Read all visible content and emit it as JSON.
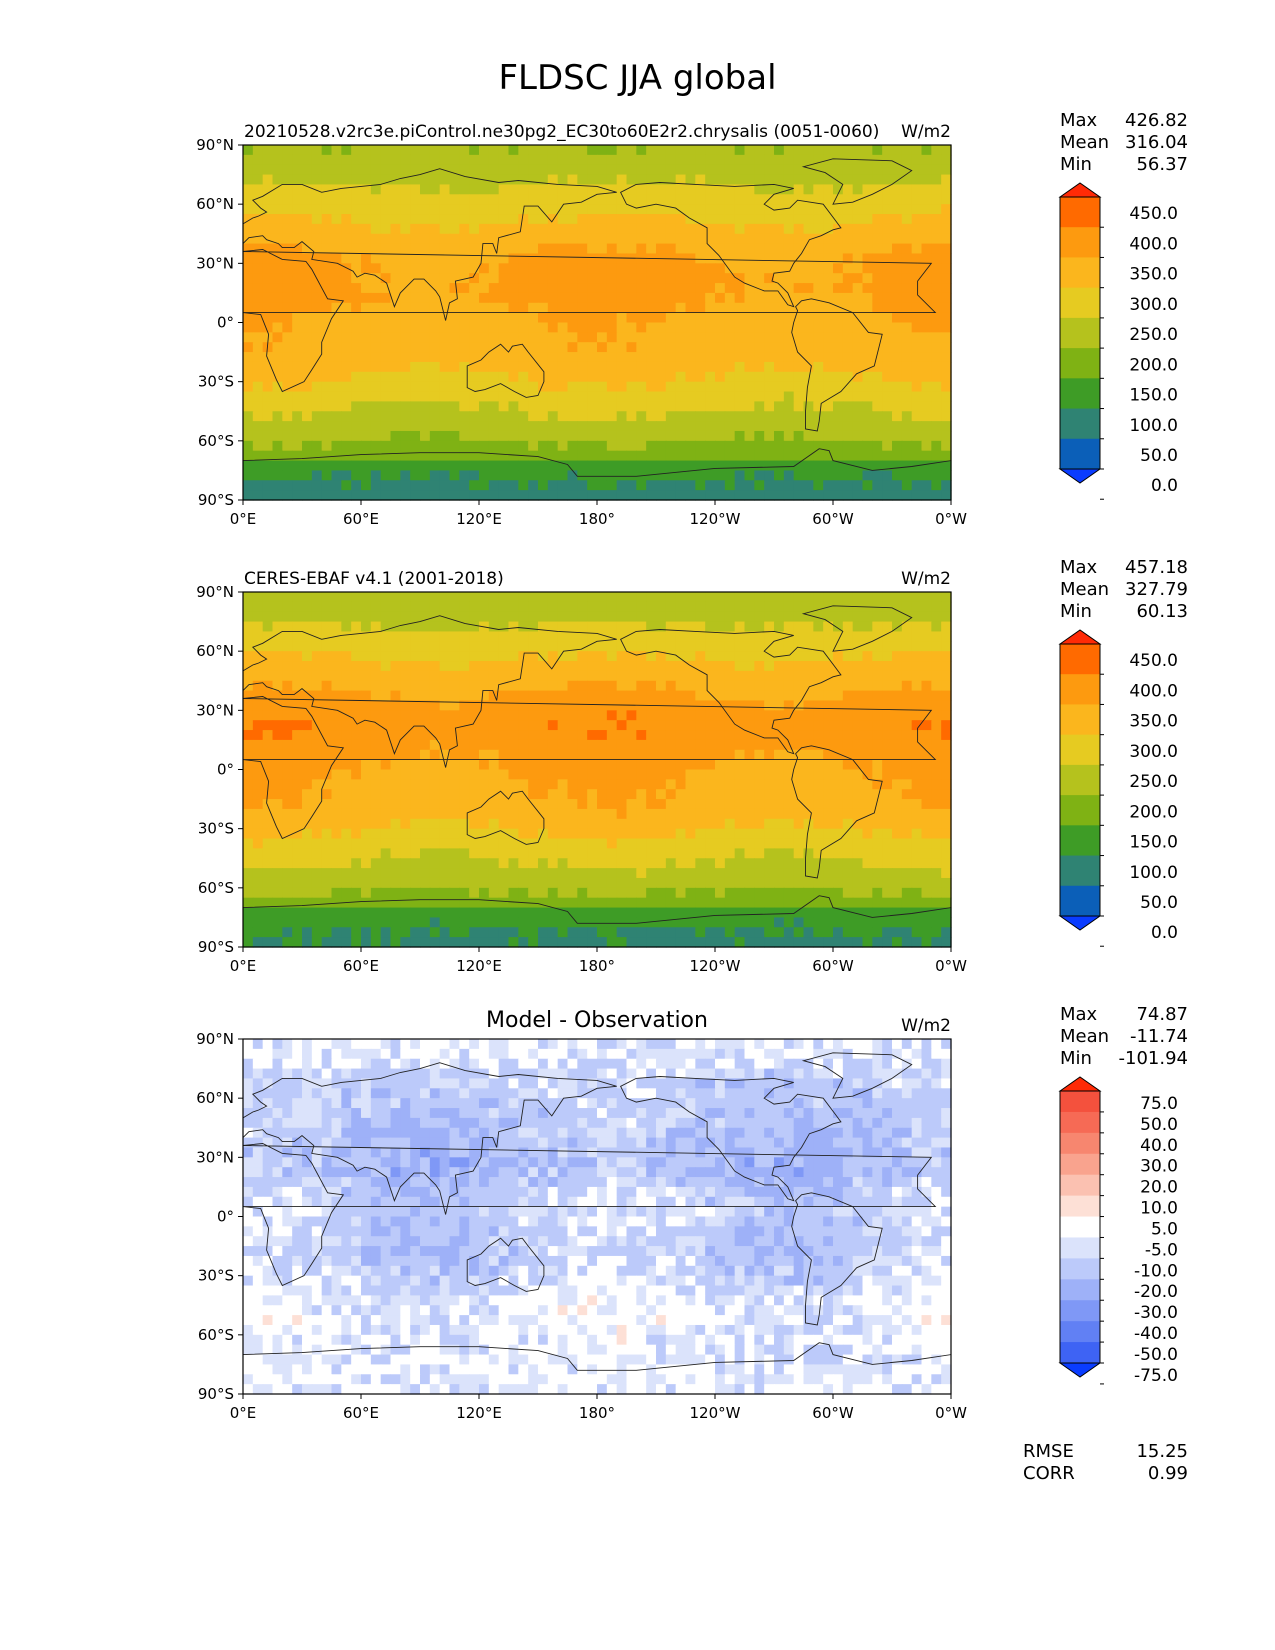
{
  "title": "FLDSC JJA global",
  "panels": [
    {
      "id": "test",
      "left_title": "20210528.v2rc3e.piControl.ne30pg2_EC30to60E2r2.chrysalis (0051-0060)",
      "center_title": "",
      "units": "W/m2",
      "stats": [
        {
          "label": "Max",
          "value": "426.82"
        },
        {
          "label": "Mean",
          "value": "316.04"
        },
        {
          "label": "Min",
          "value": "56.37"
        }
      ],
      "colorbar": {
        "labels": [
          "450.0",
          "400.0",
          "350.0",
          "300.0",
          "250.0",
          "200.0",
          "150.0",
          "100.0",
          "50.0",
          "0.0"
        ],
        "colors": [
          "#ff2a06",
          "#ff6a00",
          "#fd9a0f",
          "#fbb61d",
          "#e6cb21",
          "#b5c21d",
          "#7fb214",
          "#3e9c26",
          "#2f8373",
          "#0b5fb8",
          "#0a3cff"
        ]
      }
    },
    {
      "id": "reference",
      "left_title": "CERES-EBAF v4.1 (2001-2018)",
      "center_title": "",
      "units": "W/m2",
      "stats": [
        {
          "label": "Max",
          "value": "457.18"
        },
        {
          "label": "Mean",
          "value": "327.79"
        },
        {
          "label": "Min",
          "value": "60.13"
        }
      ],
      "colorbar": {
        "labels": [
          "450.0",
          "400.0",
          "350.0",
          "300.0",
          "250.0",
          "200.0",
          "150.0",
          "100.0",
          "50.0",
          "0.0"
        ],
        "colors": [
          "#ff2a06",
          "#ff6a00",
          "#fd9a0f",
          "#fbb61d",
          "#e6cb21",
          "#b5c21d",
          "#7fb214",
          "#3e9c26",
          "#2f8373",
          "#0b5fb8",
          "#0a3cff"
        ]
      }
    },
    {
      "id": "difference",
      "left_title": "",
      "center_title": "Model - Observation",
      "units": "W/m2",
      "stats": [
        {
          "label": "Max",
          "value": "74.87"
        },
        {
          "label": "Mean",
          "value": "-11.74"
        },
        {
          "label": "Min",
          "value": "-101.94"
        }
      ],
      "colorbar": {
        "labels": [
          "75.0",
          "50.0",
          "40.0",
          "30.0",
          "20.0",
          "10.0",
          "5.0",
          "-5.0",
          "-10.0",
          "-20.0",
          "-30.0",
          "-40.0",
          "-50.0",
          "-75.0"
        ],
        "colors": [
          "#ff2a06",
          "#f4513d",
          "#f66a55",
          "#f7866f",
          "#f9a38e",
          "#fbc1b1",
          "#fde0d6",
          "#ffffff",
          "#dbe3fb",
          "#bccafa",
          "#9eb1f8",
          "#7f98f6",
          "#6180f4",
          "#3e63f4",
          "#0a3cff"
        ]
      }
    }
  ],
  "metrics": [
    {
      "label": "RMSE",
      "value": "15.25"
    },
    {
      "label": "CORR",
      "value": "0.99"
    }
  ],
  "axes": {
    "x_ticks": [
      "0°E",
      "60°E",
      "120°E",
      "180°",
      "120°W",
      "60°W",
      "0°W"
    ],
    "y_ticks": [
      "90°N",
      "60°N",
      "30°N",
      "0°",
      "30°S",
      "60°S",
      "90°S"
    ]
  },
  "chart_data": [
    {
      "type": "heatmap",
      "panel": "test",
      "title": "20210528.v2rc3e.piControl.ne30pg2_EC30to60E2r2.chrysalis (0051-0060)",
      "units": "W/m2",
      "xlabel": "",
      "ylabel": "",
      "x_range_lon_east": [
        0,
        360
      ],
      "y_range_lat": [
        -90,
        90
      ],
      "zonal_profile": {
        "lat": [
          85,
          70,
          55,
          45,
          35,
          25,
          15,
          5,
          -5,
          -15,
          -25,
          -35,
          -45,
          -55,
          -65,
          -75,
          -85
        ],
        "value": [
          205,
          250,
          290,
          320,
          350,
          360,
          360,
          345,
          330,
          330,
          310,
          280,
          250,
          220,
          185,
          110,
          90
        ]
      },
      "levels": [
        0,
        50,
        100,
        150,
        200,
        250,
        300,
        350,
        400,
        450
      ]
    },
    {
      "type": "heatmap",
      "panel": "reference",
      "title": "CERES-EBAF v4.1 (2001-2018)",
      "units": "W/m2",
      "xlabel": "",
      "ylabel": "",
      "x_range_lon_east": [
        0,
        360
      ],
      "y_range_lat": [
        -90,
        90
      ],
      "zonal_profile": {
        "lat": [
          85,
          70,
          55,
          45,
          35,
          25,
          15,
          5,
          -5,
          -15,
          -25,
          -35,
          -45,
          -55,
          -65,
          -75,
          -85
        ],
        "value": [
          210,
          260,
          305,
          335,
          365,
          385,
          380,
          360,
          345,
          340,
          320,
          290,
          255,
          225,
          190,
          115,
          95
        ]
      },
      "levels": [
        0,
        50,
        100,
        150,
        200,
        250,
        300,
        350,
        400,
        450
      ]
    },
    {
      "type": "heatmap",
      "panel": "difference",
      "title": "Model - Observation",
      "units": "W/m2",
      "xlabel": "",
      "ylabel": "",
      "x_range_lon_east": [
        0,
        360
      ],
      "y_range_lat": [
        -90,
        90
      ],
      "zonal_profile": {
        "lat": [
          85,
          70,
          55,
          45,
          35,
          25,
          15,
          5,
          -5,
          -15,
          -25,
          -35,
          -45,
          -55,
          -65,
          -75,
          -85
        ],
        "value": [
          -5,
          -12,
          -15,
          -15,
          -18,
          -20,
          -15,
          -10,
          -12,
          -15,
          -12,
          -8,
          -5,
          -3,
          -5,
          -5,
          -5
        ]
      },
      "levels": [
        -75,
        -50,
        -40,
        -30,
        -20,
        -10,
        -5,
        5,
        10,
        20,
        30,
        40,
        50,
        75
      ]
    }
  ]
}
